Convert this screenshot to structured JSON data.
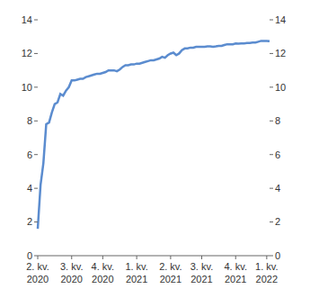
{
  "chart_data": {
    "type": "line",
    "categories": [
      "2. kv. 2020",
      null,
      null,
      null,
      null,
      null,
      null,
      null,
      null,
      null,
      null,
      null,
      "3. kv. 2020",
      null,
      null,
      null,
      null,
      null,
      null,
      null,
      null,
      null,
      null,
      "4. kv. 2020",
      null,
      null,
      null,
      null,
      null,
      null,
      null,
      null,
      null,
      null,
      null,
      "1. kv. 2021",
      null,
      null,
      null,
      null,
      null,
      null,
      null,
      null,
      null,
      null,
      null,
      "2. kv. 2021",
      null,
      null,
      null,
      null,
      null,
      null,
      null,
      null,
      null,
      null,
      "3. kv. 2021",
      null,
      null,
      null,
      null,
      null,
      null,
      null,
      null,
      null,
      null,
      null,
      "4. kv. 2021",
      null,
      null,
      null,
      null,
      null,
      null,
      null,
      null,
      null,
      null,
      "1. kv. 2022",
      null
    ],
    "values": [
      1.6,
      4.2,
      5.5,
      7.8,
      7.9,
      8.5,
      9.0,
      9.1,
      9.6,
      9.5,
      9.8,
      10.0,
      10.4,
      10.4,
      10.45,
      10.5,
      10.5,
      10.6,
      10.65,
      10.7,
      10.75,
      10.8,
      10.8,
      10.85,
      10.9,
      11.0,
      11.0,
      11.0,
      10.95,
      11.05,
      11.2,
      11.3,
      11.3,
      11.35,
      11.35,
      11.4,
      11.4,
      11.45,
      11.5,
      11.55,
      11.6,
      11.6,
      11.65,
      11.7,
      11.8,
      11.75,
      11.9,
      12.0,
      12.05,
      11.9,
      12.0,
      12.2,
      12.3,
      12.3,
      12.35,
      12.35,
      12.4,
      12.4,
      12.4,
      12.4,
      12.42,
      12.42,
      12.4,
      12.42,
      12.45,
      12.45,
      12.5,
      12.55,
      12.55,
      12.55,
      12.6,
      12.58,
      12.6,
      12.6,
      12.62,
      12.62,
      12.65,
      12.65,
      12.7,
      12.75,
      12.75,
      12.75,
      12.73
    ],
    "color": "#5b8ccf",
    "ylim": [
      0,
      14
    ],
    "yticks": [
      0,
      2,
      4,
      6,
      8,
      10,
      12,
      14
    ],
    "y2lim": [
      0,
      14
    ],
    "y2ticks": [
      0,
      2,
      4,
      6,
      8,
      10,
      12,
      14
    ],
    "grid": false
  }
}
